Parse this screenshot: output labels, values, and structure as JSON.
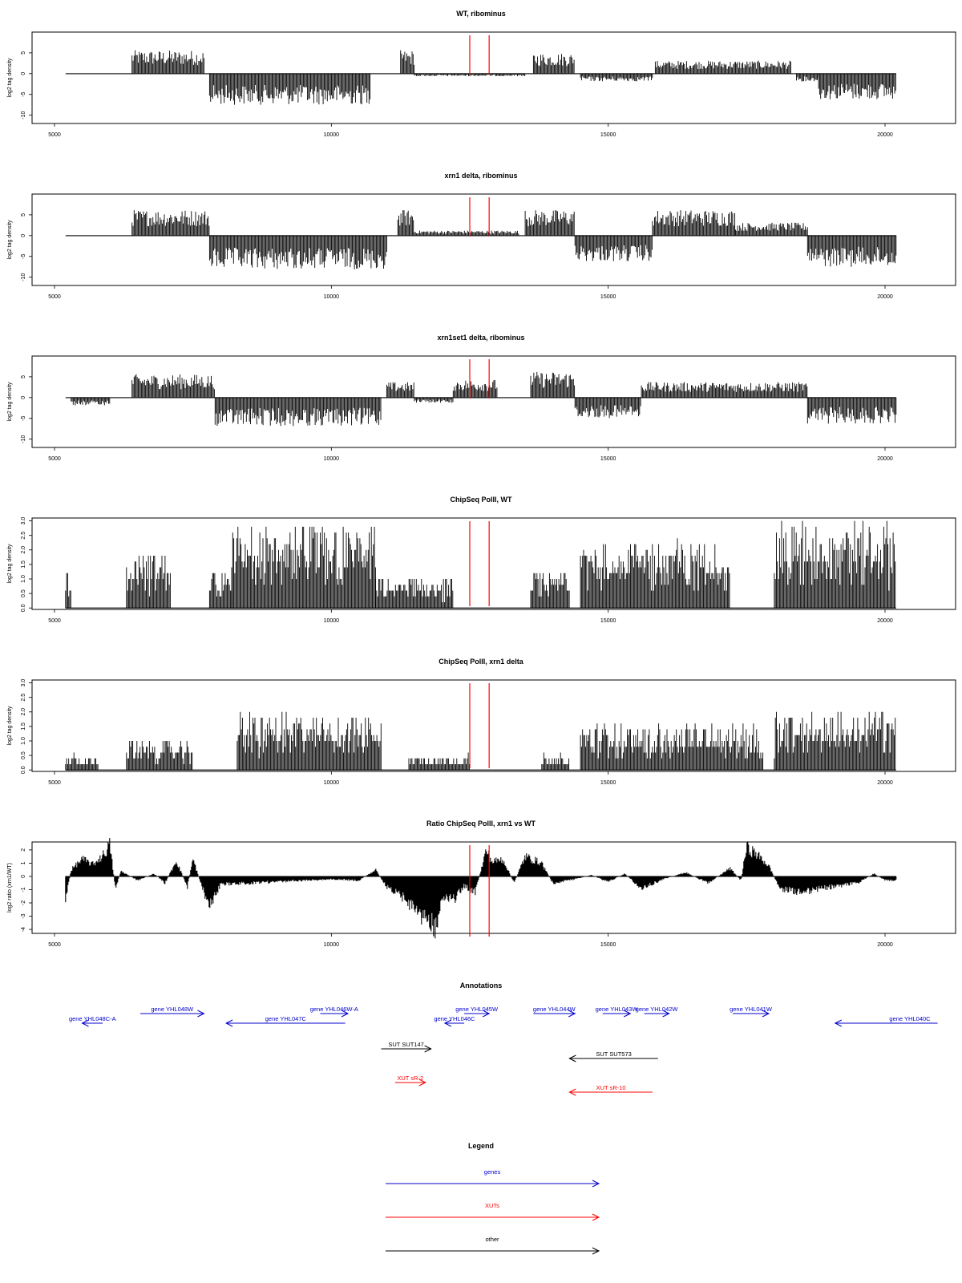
{
  "chart_data": [
    {
      "type": "bar",
      "title": "WT, ribominus",
      "ylabel": "log2 tag density",
      "xlim": [
        5200,
        20200
      ],
      "ylim": [
        -12,
        10
      ],
      "yticks": [
        -10,
        -5,
        0,
        5
      ],
      "ytick_labels": [
        "-10",
        "-5",
        "0",
        "5"
      ],
      "xticks": [
        5000,
        10000,
        15000,
        20000
      ],
      "xtick_labels": [
        "5000",
        "10000",
        "15000",
        "20000"
      ],
      "segments": [
        {
          "start": 6400,
          "end": 7700,
          "value": 4.5
        },
        {
          "start": 7800,
          "end": 10700,
          "value": -6
        },
        {
          "start": 11250,
          "end": 11500,
          "value": 4.5
        },
        {
          "start": 11500,
          "end": 13500,
          "value": -0.5
        },
        {
          "start": 13650,
          "end": 14400,
          "value": 4
        },
        {
          "start": 14500,
          "end": 15800,
          "value": -1.5
        },
        {
          "start": 15850,
          "end": 18300,
          "value": 2.5
        },
        {
          "start": 18400,
          "end": 18800,
          "value": -1.5
        },
        {
          "start": 18800,
          "end": 20200,
          "value": -5
        }
      ],
      "markers": [
        12500,
        12850
      ],
      "marker_color": "#ff0000"
    },
    {
      "type": "bar",
      "title": "xrn1 delta, ribominus",
      "ylabel": "log2 tag density",
      "xlim": [
        5200,
        20200
      ],
      "ylim": [
        -12,
        10
      ],
      "yticks": [
        -10,
        -5,
        0,
        5
      ],
      "ytick_labels": [
        "-10",
        "-5",
        "0",
        "5"
      ],
      "xticks": [
        5000,
        10000,
        15000,
        20000
      ],
      "xtick_labels": [
        "5000",
        "10000",
        "15000",
        "20000"
      ],
      "segments": [
        {
          "start": 6400,
          "end": 7800,
          "value": 5
        },
        {
          "start": 7800,
          "end": 11000,
          "value": -6.5
        },
        {
          "start": 11200,
          "end": 11500,
          "value": 5
        },
        {
          "start": 11500,
          "end": 13400,
          "value": 1
        },
        {
          "start": 13500,
          "end": 14400,
          "value": 5
        },
        {
          "start": 14400,
          "end": 15800,
          "value": -5
        },
        {
          "start": 15800,
          "end": 17300,
          "value": 5
        },
        {
          "start": 17300,
          "end": 18600,
          "value": 2.5
        },
        {
          "start": 18600,
          "end": 20200,
          "value": -6
        }
      ],
      "markers": [
        12500,
        12850
      ],
      "marker_color": "#ff0000"
    },
    {
      "type": "bar",
      "title": "xrn1set1 delta, ribominus",
      "ylabel": "log2 tag density",
      "xlim": [
        5200,
        20200
      ],
      "ylim": [
        -12,
        10
      ],
      "yticks": [
        -10,
        -5,
        0,
        5
      ],
      "ytick_labels": [
        "-10",
        "-5",
        "0",
        "5"
      ],
      "xticks": [
        5000,
        10000,
        15000,
        20000
      ],
      "xtick_labels": [
        "5000",
        "10000",
        "15000",
        "20000"
      ],
      "segments": [
        {
          "start": 5300,
          "end": 6000,
          "value": -1.5
        },
        {
          "start": 6400,
          "end": 7900,
          "value": 4.5
        },
        {
          "start": 7900,
          "end": 10900,
          "value": -5.5
        },
        {
          "start": 11000,
          "end": 11500,
          "value": 3
        },
        {
          "start": 11500,
          "end": 12200,
          "value": -1
        },
        {
          "start": 12200,
          "end": 13000,
          "value": 3.5
        },
        {
          "start": 13600,
          "end": 14400,
          "value": 5
        },
        {
          "start": 14400,
          "end": 15600,
          "value": -4
        },
        {
          "start": 15600,
          "end": 18600,
          "value": 3
        },
        {
          "start": 18600,
          "end": 20200,
          "value": -5
        }
      ],
      "markers": [
        12500,
        12850
      ],
      "marker_color": "#ff0000"
    },
    {
      "type": "bar",
      "title": "ChipSeq PolII, WT",
      "ylabel": "log2 tag density",
      "xlim": [
        5200,
        20200
      ],
      "ylim": [
        -0.05,
        3.1
      ],
      "yticks": [
        0,
        0.5,
        1,
        1.5,
        2,
        2.5,
        3
      ],
      "ytick_labels": [
        "0.0",
        "0.5",
        "1.0",
        "1.5",
        "2.0",
        "2.5",
        "3.0"
      ],
      "xticks": [
        5000,
        10000,
        15000,
        20000
      ],
      "xtick_labels": [
        "5000",
        "10000",
        "15000",
        "20000"
      ],
      "segments": [
        {
          "start": 5200,
          "end": 5300,
          "value": 1.0
        },
        {
          "start": 6300,
          "end": 7100,
          "value": 1.5
        },
        {
          "start": 7800,
          "end": 8200,
          "value": 1.0
        },
        {
          "start": 8200,
          "end": 10800,
          "value": 2.2
        },
        {
          "start": 10800,
          "end": 12200,
          "value": 0.8
        },
        {
          "start": 13600,
          "end": 14300,
          "value": 1.0
        },
        {
          "start": 14500,
          "end": 17200,
          "value": 1.8
        },
        {
          "start": 18000,
          "end": 20200,
          "value": 2.3
        }
      ],
      "markers": [
        12500,
        12850
      ],
      "marker_color": "#ff0000"
    },
    {
      "type": "bar",
      "title": "ChipSeq PolII, xrn1 delta",
      "ylabel": "log2 tag density",
      "xlim": [
        5200,
        20200
      ],
      "ylim": [
        -0.05,
        3.1
      ],
      "yticks": [
        0,
        0.5,
        1,
        1.5,
        2,
        2.5,
        3
      ],
      "ytick_labels": [
        "0.0",
        "0.5",
        "1.0",
        "1.5",
        "2.0",
        "2.5",
        "3.0"
      ],
      "xticks": [
        5000,
        10000,
        15000,
        20000
      ],
      "xtick_labels": [
        "5000",
        "10000",
        "15000",
        "20000"
      ],
      "segments": [
        {
          "start": 5200,
          "end": 5800,
          "value": 0.4
        },
        {
          "start": 6300,
          "end": 7500,
          "value": 0.8
        },
        {
          "start": 8300,
          "end": 10900,
          "value": 1.5
        },
        {
          "start": 11400,
          "end": 12500,
          "value": 0.4
        },
        {
          "start": 13800,
          "end": 14300,
          "value": 0.4
        },
        {
          "start": 14500,
          "end": 17800,
          "value": 1.2
        },
        {
          "start": 18000,
          "end": 20200,
          "value": 1.6
        }
      ],
      "markers": [
        12500,
        12850
      ],
      "marker_color": "#ff0000"
    },
    {
      "type": "area",
      "title": "Ratio ChipSeq PolII, xrn1 vs WT",
      "ylabel": "log2 ratio (xrn1/WT)",
      "xlim": [
        5200,
        20200
      ],
      "ylim": [
        -4.3,
        2.6
      ],
      "yticks": [
        -4,
        -3,
        -2,
        -1,
        0,
        1,
        2
      ],
      "ytick_labels": [
        "-4",
        "-3",
        "-2",
        "-1",
        "0",
        "1",
        "2"
      ],
      "xticks": [
        5000,
        10000,
        15000,
        20000
      ],
      "xtick_labels": [
        "5000",
        "10000",
        "15000",
        "20000"
      ],
      "x": [
        5200,
        5300,
        5500,
        5700,
        5900,
        6000,
        6100,
        6200,
        6500,
        6800,
        7000,
        7200,
        7400,
        7500,
        7700,
        7800,
        8000,
        8500,
        9000,
        9500,
        10000,
        10500,
        10800,
        11000,
        11300,
        11600,
        11900,
        12000,
        12200,
        12400,
        12600,
        12800,
        12900,
        13100,
        13300,
        13500,
        13800,
        14000,
        14400,
        14700,
        15000,
        15300,
        15600,
        16000,
        16400,
        16800,
        17200,
        17400,
        17500,
        17700,
        17900,
        18100,
        18500,
        19000,
        19500,
        19800,
        20000,
        20200
      ],
      "y": [
        -1.8,
        0.5,
        1.3,
        0.9,
        1.7,
        2.4,
        -0.9,
        0.4,
        -0.3,
        0.2,
        -0.5,
        1.2,
        -0.8,
        1.3,
        -1.2,
        -2.2,
        -0.6,
        -0.5,
        -0.4,
        -0.3,
        -0.2,
        -0.3,
        0.5,
        -0.8,
        -1.6,
        -2.8,
        -3.9,
        -1.5,
        -1.8,
        -0.7,
        -1.2,
        2.0,
        1.1,
        1.3,
        -0.5,
        1.5,
        1.0,
        -0.5,
        -0.2,
        0.1,
        -0.4,
        0.2,
        -0.9,
        -0.2,
        0.3,
        -0.5,
        0.6,
        -0.3,
        2.2,
        1.6,
        0.8,
        -0.9,
        -1.2,
        -0.8,
        -0.5,
        0.2,
        -0.3,
        -0.3
      ],
      "markers": [
        12500,
        12850
      ],
      "marker_color": "#ff0000"
    }
  ],
  "annotations": {
    "title": "Annotations",
    "items": [
      {
        "label": "gene YHL048C-A",
        "start": 5500,
        "end": 5870,
        "dir": "left",
        "row": 1,
        "color": "#0000cc"
      },
      {
        "label": "gene YHL048W",
        "start": 6550,
        "end": 7700,
        "dir": "right",
        "row": 0,
        "color": "#0000cc"
      },
      {
        "label": "gene YHL047C",
        "start": 8100,
        "end": 10250,
        "dir": "left",
        "row": 1,
        "color": "#0000cc"
      },
      {
        "label": "gene YHL046W-A",
        "start": 9800,
        "end": 10300,
        "dir": "right",
        "row": 0,
        "color": "#0000cc"
      },
      {
        "label": "gene YHL046C",
        "start": 12050,
        "end": 12400,
        "dir": "left",
        "row": 1,
        "color": "#0000cc"
      },
      {
        "label": "gene YHL045W",
        "start": 12400,
        "end": 12850,
        "dir": "right",
        "row": 0,
        "color": "#0000cc"
      },
      {
        "label": "gene YHL044W",
        "start": 13650,
        "end": 14400,
        "dir": "right",
        "row": 0,
        "color": "#0000cc"
      },
      {
        "label": "gene YHL043W",
        "start": 14900,
        "end": 15400,
        "dir": "right",
        "row": 0,
        "color": "#0000cc"
      },
      {
        "label": "gene YHL042W",
        "start": 15650,
        "end": 16100,
        "dir": "right",
        "row": 0,
        "color": "#0000cc"
      },
      {
        "label": "gene YHL041W",
        "start": 17250,
        "end": 17900,
        "dir": "right",
        "row": 0,
        "color": "#0000cc"
      },
      {
        "label": "gene YHL040C",
        "start": 19100,
        "end": 20950,
        "dir": "left",
        "row": 1,
        "color": "#0000cc"
      },
      {
        "label": "SUT SUT147",
        "start": 10900,
        "end": 11800,
        "dir": "right",
        "row": 2,
        "color": "#000000"
      },
      {
        "label": "SUT SUT573",
        "start": 14300,
        "end": 15900,
        "dir": "left",
        "row": 3,
        "color": "#000000"
      },
      {
        "label": "XUT sR-2",
        "start": 11150,
        "end": 11700,
        "dir": "right",
        "row": 4,
        "color": "#ff0000"
      },
      {
        "label": "XUT sR-10",
        "start": 14300,
        "end": 15800,
        "dir": "left",
        "row": 5,
        "color": "#ff0000"
      }
    ]
  },
  "legend": {
    "title": "Legend",
    "items": [
      {
        "label": "genes",
        "color": "#0000cc"
      },
      {
        "label": "XUTs",
        "color": "#ff0000"
      },
      {
        "label": "other",
        "color": "#000000"
      }
    ]
  }
}
